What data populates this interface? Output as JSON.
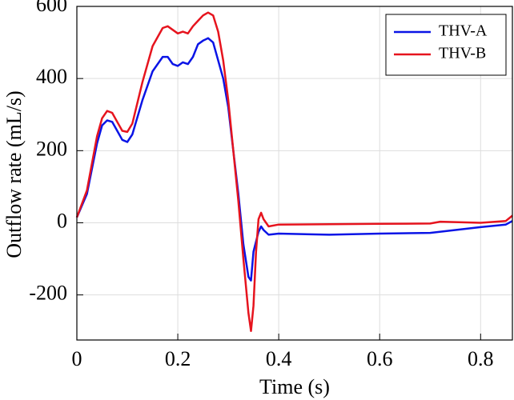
{
  "chart_data": {
    "type": "line",
    "x_label": "Time (s)",
    "y_label": "Outflow rate (mL/s)",
    "xlim": [
      0,
      0.863
    ],
    "ylim": [
      -325,
      600
    ],
    "xticks": [
      0,
      0.2,
      0.4,
      0.6,
      0.8
    ],
    "yticks": [
      -200,
      0,
      200,
      400,
      600
    ],
    "grid": true,
    "legend": "upper right",
    "series": [
      {
        "name": "THV-A",
        "color": "#0a14e6",
        "x": [
          0,
          0.02,
          0.04,
          0.05,
          0.06,
          0.07,
          0.08,
          0.09,
          0.1,
          0.11,
          0.13,
          0.15,
          0.17,
          0.18,
          0.19,
          0.2,
          0.21,
          0.22,
          0.23,
          0.24,
          0.25,
          0.26,
          0.27,
          0.28,
          0.29,
          0.3,
          0.31,
          0.32,
          0.33,
          0.34,
          0.345,
          0.35,
          0.36,
          0.365,
          0.37,
          0.38,
          0.4,
          0.5,
          0.6,
          0.7,
          0.75,
          0.8,
          0.85,
          0.863
        ],
        "values": [
          15,
          80,
          220,
          270,
          284,
          280,
          255,
          230,
          224,
          245,
          340,
          420,
          460,
          460,
          440,
          435,
          445,
          440,
          460,
          495,
          505,
          512,
          500,
          450,
          400,
          320,
          200,
          80,
          -60,
          -150,
          -160,
          -80,
          -25,
          -10,
          -20,
          -33,
          -30,
          -33,
          -30,
          -28,
          -20,
          -12,
          -5,
          5
        ]
      },
      {
        "name": "THV-B",
        "color": "#e6141e",
        "x": [
          0,
          0.02,
          0.04,
          0.05,
          0.06,
          0.07,
          0.08,
          0.09,
          0.1,
          0.11,
          0.13,
          0.15,
          0.17,
          0.18,
          0.19,
          0.2,
          0.21,
          0.22,
          0.23,
          0.24,
          0.25,
          0.26,
          0.27,
          0.28,
          0.29,
          0.3,
          0.31,
          0.32,
          0.33,
          0.34,
          0.345,
          0.35,
          0.355,
          0.36,
          0.365,
          0.37,
          0.38,
          0.4,
          0.6,
          0.7,
          0.72,
          0.8,
          0.85,
          0.863
        ],
        "values": [
          15,
          90,
          240,
          290,
          310,
          305,
          280,
          255,
          252,
          275,
          390,
          490,
          540,
          545,
          535,
          525,
          530,
          525,
          545,
          560,
          575,
          583,
          575,
          530,
          450,
          340,
          200,
          60,
          -100,
          -250,
          -300,
          -230,
          -80,
          10,
          28,
          10,
          -10,
          -5,
          -3,
          -2,
          3,
          0,
          5,
          20
        ]
      }
    ]
  }
}
